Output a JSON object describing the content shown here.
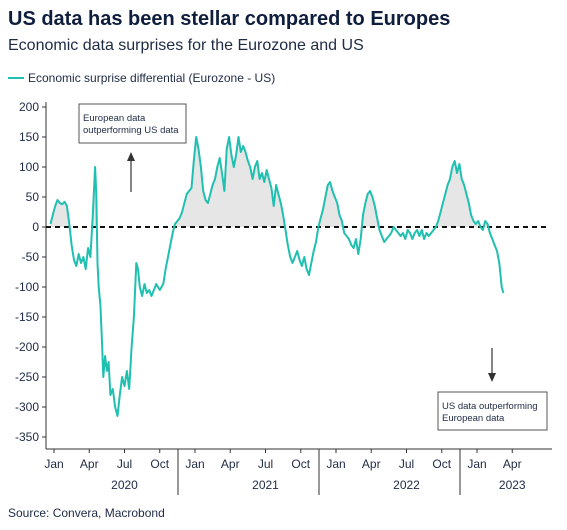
{
  "title": "US data has been stellar compared to Europes",
  "subtitle": "Economic data surprises for the Eurozone and US",
  "legend": {
    "label": "Economic surprise differential (Eurozone - US)",
    "color": "#20c0b0"
  },
  "source": "Source: Convera, Macrobond",
  "annotations": {
    "top": [
      "European data",
      "outperforming US data"
    ],
    "bottom": [
      "US data outperforming",
      "European data"
    ]
  },
  "chart_data": {
    "type": "line",
    "ylim": [
      -350,
      200
    ],
    "y_ticks": [
      200,
      150,
      100,
      50,
      0,
      -50,
      -100,
      -150,
      -200,
      -250,
      -300,
      -350
    ],
    "x_ticks": [
      {
        "label": "Jan",
        "t": 0
      },
      {
        "label": "Apr",
        "t": 3
      },
      {
        "label": "Jul",
        "t": 6
      },
      {
        "label": "Oct",
        "t": 9
      },
      {
        "label": "Jan",
        "t": 12
      },
      {
        "label": "Apr",
        "t": 15
      },
      {
        "label": "Jul",
        "t": 18
      },
      {
        "label": "Oct",
        "t": 21
      },
      {
        "label": "Jan",
        "t": 24
      },
      {
        "label": "Apr",
        "t": 27
      },
      {
        "label": "Jul",
        "t": 30
      },
      {
        "label": "Oct",
        "t": 33
      },
      {
        "label": "Jan",
        "t": 36
      },
      {
        "label": "Apr",
        "t": 39
      }
    ],
    "years": [
      {
        "label": "2020",
        "t": 6
      },
      {
        "label": "2021",
        "t": 18
      },
      {
        "label": "2022",
        "t": 30
      },
      {
        "label": "2023",
        "t": 39
      }
    ],
    "zero_line": 0,
    "series": [
      {
        "name": "Economic surprise differential (Eurozone - US)",
        "color": "#20c0b0",
        "points": [
          [
            -0.3,
            5
          ],
          [
            -0.1,
            20
          ],
          [
            0.1,
            35
          ],
          [
            0.3,
            45
          ],
          [
            0.5,
            40
          ],
          [
            0.7,
            38
          ],
          [
            0.9,
            42
          ],
          [
            1.1,
            35
          ],
          [
            1.3,
            5
          ],
          [
            1.5,
            -30
          ],
          [
            1.7,
            -55
          ],
          [
            1.9,
            -65
          ],
          [
            2.1,
            -45
          ],
          [
            2.3,
            -60
          ],
          [
            2.5,
            -50
          ],
          [
            2.7,
            -70
          ],
          [
            2.9,
            -35
          ],
          [
            3.1,
            -50
          ],
          [
            3.3,
            20
          ],
          [
            3.5,
            100
          ],
          [
            3.6,
            55
          ],
          [
            3.7,
            -60
          ],
          [
            3.8,
            -100
          ],
          [
            3.95,
            -130
          ],
          [
            4.1,
            -200
          ],
          [
            4.2,
            -250
          ],
          [
            4.35,
            -215
          ],
          [
            4.5,
            -240
          ],
          [
            4.65,
            -225
          ],
          [
            4.8,
            -280
          ],
          [
            5.0,
            -270
          ],
          [
            5.2,
            -300
          ],
          [
            5.4,
            -315
          ],
          [
            5.6,
            -280
          ],
          [
            5.8,
            -250
          ],
          [
            6.0,
            -265
          ],
          [
            6.2,
            -240
          ],
          [
            6.4,
            -270
          ],
          [
            6.6,
            -200
          ],
          [
            6.8,
            -150
          ],
          [
            7.0,
            -60
          ],
          [
            7.15,
            -70
          ],
          [
            7.3,
            -100
          ],
          [
            7.5,
            -115
          ],
          [
            7.7,
            -95
          ],
          [
            7.9,
            -110
          ],
          [
            8.1,
            -105
          ],
          [
            8.3,
            -115
          ],
          [
            8.5,
            -105
          ],
          [
            8.7,
            -95
          ],
          [
            9.0,
            -105
          ],
          [
            9.3,
            -95
          ],
          [
            9.5,
            -70
          ],
          [
            9.7,
            -50
          ],
          [
            9.9,
            -30
          ],
          [
            10.1,
            -10
          ],
          [
            10.3,
            5
          ],
          [
            10.5,
            10
          ],
          [
            10.7,
            15
          ],
          [
            10.9,
            25
          ],
          [
            11.1,
            40
          ],
          [
            11.3,
            55
          ],
          [
            11.5,
            60
          ],
          [
            11.7,
            65
          ],
          [
            11.9,
            110
          ],
          [
            12.1,
            150
          ],
          [
            12.3,
            130
          ],
          [
            12.5,
            100
          ],
          [
            12.7,
            60
          ],
          [
            12.9,
            45
          ],
          [
            13.1,
            40
          ],
          [
            13.3,
            55
          ],
          [
            13.5,
            70
          ],
          [
            13.7,
            80
          ],
          [
            13.9,
            100
          ],
          [
            14.1,
            115
          ],
          [
            14.3,
            90
          ],
          [
            14.5,
            60
          ],
          [
            14.7,
            130
          ],
          [
            14.9,
            150
          ],
          [
            15.1,
            120
          ],
          [
            15.3,
            100
          ],
          [
            15.5,
            120
          ],
          [
            15.7,
            150
          ],
          [
            15.9,
            125
          ],
          [
            16.1,
            135
          ],
          [
            16.3,
            125
          ],
          [
            16.5,
            110
          ],
          [
            16.7,
            100
          ],
          [
            16.9,
            80
          ],
          [
            17.1,
            100
          ],
          [
            17.3,
            110
          ],
          [
            17.5,
            80
          ],
          [
            17.7,
            90
          ],
          [
            17.9,
            75
          ],
          [
            18.1,
            95
          ],
          [
            18.3,
            80
          ],
          [
            18.5,
            65
          ],
          [
            18.7,
            35
          ],
          [
            18.9,
            70
          ],
          [
            19.1,
            55
          ],
          [
            19.3,
            40
          ],
          [
            19.5,
            20
          ],
          [
            19.7,
            -5
          ],
          [
            19.9,
            -30
          ],
          [
            20.1,
            -50
          ],
          [
            20.3,
            -60
          ],
          [
            20.5,
            -50
          ],
          [
            20.7,
            -40
          ],
          [
            20.9,
            -55
          ],
          [
            21.1,
            -65
          ],
          [
            21.3,
            -50
          ],
          [
            21.5,
            -70
          ],
          [
            21.7,
            -80
          ],
          [
            21.9,
            -60
          ],
          [
            22.1,
            -40
          ],
          [
            22.3,
            -25
          ],
          [
            22.5,
            0
          ],
          [
            22.7,
            15
          ],
          [
            22.9,
            30
          ],
          [
            23.1,
            50
          ],
          [
            23.3,
            70
          ],
          [
            23.5,
            75
          ],
          [
            23.7,
            60
          ],
          [
            23.9,
            50
          ],
          [
            24.1,
            40
          ],
          [
            24.3,
            20
          ],
          [
            24.5,
            10
          ],
          [
            24.7,
            -10
          ],
          [
            24.9,
            -15
          ],
          [
            25.1,
            -20
          ],
          [
            25.3,
            -30
          ],
          [
            25.5,
            -35
          ],
          [
            25.7,
            -20
          ],
          [
            25.9,
            -45
          ],
          [
            26.1,
            -20
          ],
          [
            26.3,
            20
          ],
          [
            26.5,
            40
          ],
          [
            26.7,
            55
          ],
          [
            26.9,
            60
          ],
          [
            27.1,
            50
          ],
          [
            27.3,
            35
          ],
          [
            27.5,
            15
          ],
          [
            27.7,
            -5
          ],
          [
            27.9,
            -15
          ],
          [
            28.1,
            -25
          ],
          [
            28.3,
            -20
          ],
          [
            28.5,
            -15
          ],
          [
            28.7,
            -10
          ],
          [
            28.9,
            0
          ],
          [
            29.1,
            -5
          ],
          [
            29.3,
            -10
          ],
          [
            29.5,
            -15
          ],
          [
            29.7,
            -10
          ],
          [
            29.9,
            -20
          ],
          [
            30.1,
            -5
          ],
          [
            30.3,
            -10
          ],
          [
            30.5,
            -20
          ],
          [
            30.7,
            -10
          ],
          [
            30.9,
            -5
          ],
          [
            31.1,
            -15
          ],
          [
            31.3,
            -5
          ],
          [
            31.5,
            -20
          ],
          [
            31.7,
            -10
          ],
          [
            31.9,
            -15
          ],
          [
            32.1,
            -10
          ],
          [
            32.3,
            -5
          ],
          [
            32.5,
            0
          ],
          [
            32.7,
            10
          ],
          [
            32.9,
            25
          ],
          [
            33.1,
            40
          ],
          [
            33.3,
            55
          ],
          [
            33.5,
            70
          ],
          [
            33.7,
            80
          ],
          [
            33.9,
            100
          ],
          [
            34.1,
            110
          ],
          [
            34.3,
            90
          ],
          [
            34.5,
            105
          ],
          [
            34.7,
            80
          ],
          [
            34.9,
            70
          ],
          [
            35.1,
            55
          ],
          [
            35.3,
            40
          ],
          [
            35.5,
            20
          ],
          [
            35.7,
            10
          ],
          [
            35.9,
            5
          ],
          [
            36.1,
            10
          ],
          [
            36.3,
            0
          ],
          [
            36.5,
            -5
          ],
          [
            36.7,
            10
          ],
          [
            36.9,
            5
          ],
          [
            37.1,
            -10
          ],
          [
            37.3,
            -20
          ],
          [
            37.5,
            -30
          ],
          [
            37.7,
            -40
          ],
          [
            37.9,
            -60
          ],
          [
            38.1,
            -100
          ],
          [
            38.25,
            -110
          ]
        ]
      }
    ]
  }
}
